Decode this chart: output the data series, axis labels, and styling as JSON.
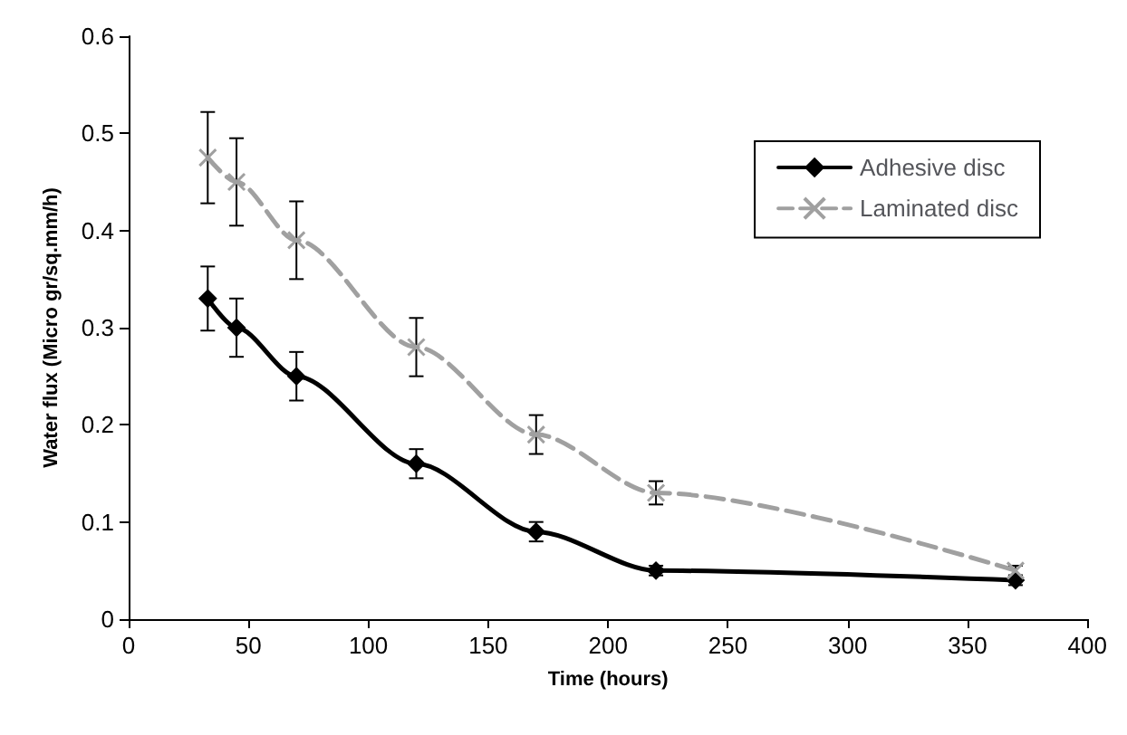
{
  "chart_data": {
    "type": "line",
    "xlabel": "Time (hours)",
    "ylabel": "Water flux (Micro gr/sq.mm/h)",
    "x": [
      33,
      45,
      70,
      120,
      170,
      220,
      370
    ],
    "series": [
      {
        "name": "Adhesive disc",
        "color": "#000000",
        "marker": "diamond",
        "line_style": "solid",
        "values": [
          0.33,
          0.3,
          0.25,
          0.16,
          0.09,
          0.05,
          0.04
        ],
        "errors": [
          0.033,
          0.03,
          0.025,
          0.015,
          0.01,
          0.005,
          0.005
        ]
      },
      {
        "name": "Laminated disc",
        "color": "#a0a0a0",
        "marker": "cross",
        "line_style": "dashed",
        "values": [
          0.475,
          0.45,
          0.39,
          0.28,
          0.19,
          0.13,
          0.05
        ],
        "errors": [
          0.047,
          0.045,
          0.04,
          0.03,
          0.02,
          0.012,
          0.005
        ]
      }
    ],
    "xlim": [
      0,
      400
    ],
    "xticks": [
      0,
      50,
      100,
      150,
      200,
      250,
      300,
      350,
      400
    ],
    "ylim": [
      0,
      0.6
    ],
    "yticks": [
      0,
      0.1,
      0.2,
      0.3,
      0.4,
      0.5,
      0.6
    ],
    "grid": false,
    "legend": "top right"
  }
}
